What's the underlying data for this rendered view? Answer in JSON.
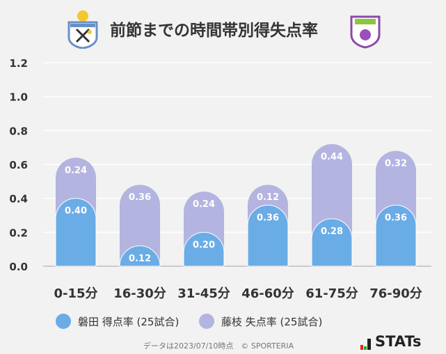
{
  "header": {
    "title": "前節までの時間帯別得失点率",
    "left_logo": "JUBILO IWATA",
    "right_logo": "FUJIEDA MYFC"
  },
  "chart_data": {
    "type": "bar",
    "stacked": true,
    "title": "前節までの時間帯別得失点率",
    "categories": [
      "0-15分",
      "16-30分",
      "31-45分",
      "46-60分",
      "61-75分",
      "76-90分"
    ],
    "series": [
      {
        "name": "磐田 得点率 (25試合)",
        "values": [
          0.4,
          0.12,
          0.2,
          0.36,
          0.28,
          0.36
        ],
        "labels": [
          "0.40",
          "0.12",
          "0.20",
          "0.36",
          "0.28",
          "0.36"
        ],
        "color": "#6aace6"
      },
      {
        "name": "藤枝 失点率 (25試合)",
        "values": [
          0.24,
          0.36,
          0.24,
          0.12,
          0.44,
          0.32
        ],
        "labels": [
          "0.24",
          "0.36",
          "0.24",
          "0.12",
          "0.44",
          "0.32"
        ],
        "color": "#b4b4e0"
      }
    ],
    "ylim": [
      0,
      1.2
    ],
    "yticks": [
      "0.0",
      "0.2",
      "0.4",
      "0.6",
      "0.8",
      "1.0",
      "1.2"
    ],
    "grid": true,
    "legend": "bottom"
  },
  "footer": {
    "note": "データは2023/07/10時点　© SPORTERIA",
    "brand": "STATs"
  }
}
